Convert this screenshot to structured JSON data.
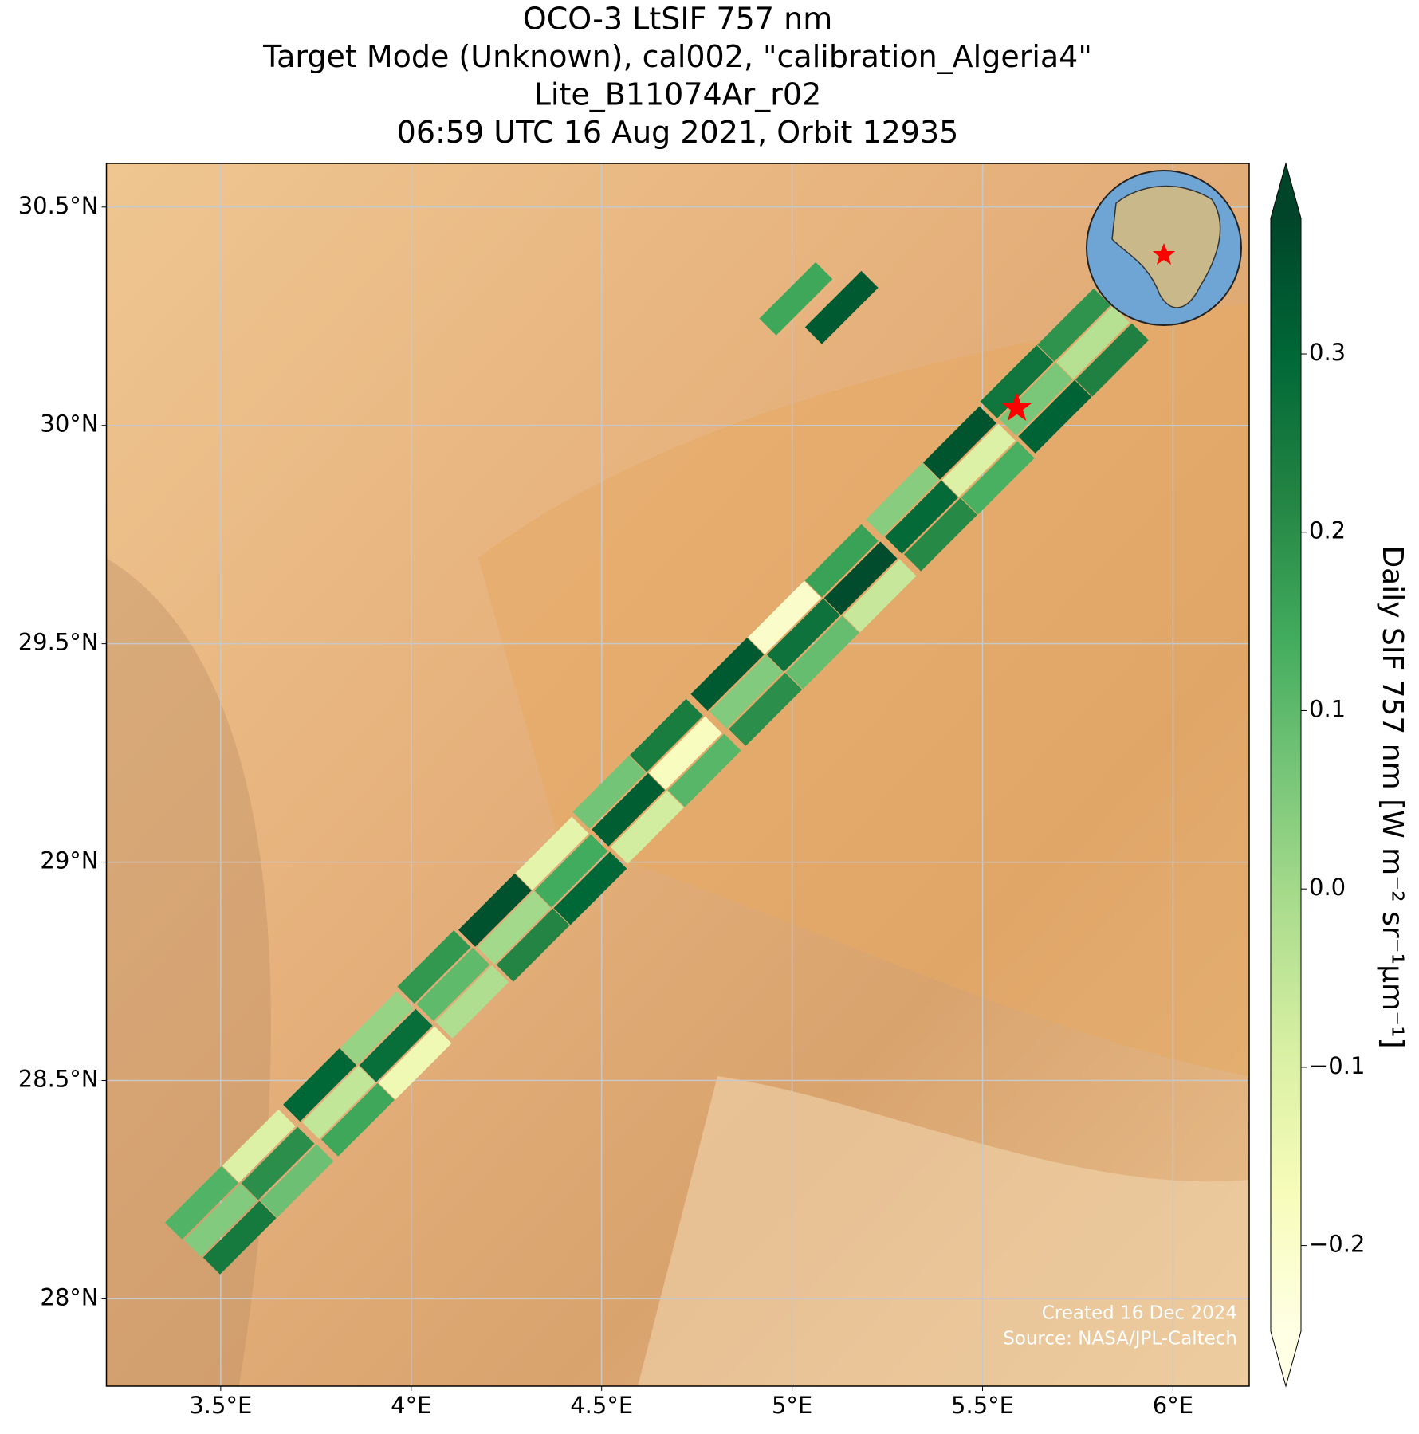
{
  "chart_data": {
    "type": "scatter",
    "title": [
      "OCO-3 LtSIF 757 nm",
      "Target Mode (Unknown), cal002, \"calibration_Algeria4\"",
      "Lite_B11074Ar_r02",
      "06:59 UTC 16 Aug 2021, Orbit 12935"
    ],
    "xlim": [
      3.2,
      6.2
    ],
    "ylim": [
      27.8,
      30.6
    ],
    "xticks": [
      {
        "value": 3.5,
        "label": "3.5°E"
      },
      {
        "value": 4,
        "label": "4°E"
      },
      {
        "value": 4.5,
        "label": "4.5°E"
      },
      {
        "value": 5,
        "label": "5°E"
      },
      {
        "value": 5.5,
        "label": "5.5°E"
      },
      {
        "value": 6,
        "label": "6°E"
      }
    ],
    "yticks": [
      {
        "value": 28,
        "label": "28°N"
      },
      {
        "value": 28.5,
        "label": "28.5°N"
      },
      {
        "value": 29,
        "label": "29°N"
      },
      {
        "value": 29.5,
        "label": "29.5°N"
      },
      {
        "value": 30,
        "label": "30°N"
      },
      {
        "value": 30.5,
        "label": "30.5°N"
      }
    ],
    "grid": true,
    "x": [
      3.45,
      3.5,
      3.55,
      3.6,
      3.65,
      3.7,
      3.76,
      3.81,
      3.86,
      3.91,
      3.96,
      4.01,
      4.06,
      4.11,
      4.16,
      4.22,
      4.27,
      4.32,
      4.37,
      4.42,
      4.47,
      4.52,
      4.57,
      4.62,
      4.67,
      4.72,
      4.77,
      4.83,
      4.88,
      4.93,
      4.98,
      5.03,
      5.08,
      5.13,
      5.18,
      5.23,
      5.29,
      5.34,
      5.39,
      5.44,
      5.49,
      5.54,
      5.59,
      5.64,
      5.69,
      5.74,
      5.79,
      5.84,
      5.01,
      5.13
    ],
    "y": [
      28.22,
      28.18,
      28.14,
      28.35,
      28.31,
      28.27,
      28.49,
      28.45,
      28.41,
      28.62,
      28.58,
      28.54,
      28.76,
      28.72,
      28.68,
      28.89,
      28.85,
      28.81,
      29.02,
      28.98,
      28.94,
      29.16,
      29.12,
      29.08,
      29.29,
      29.25,
      29.21,
      29.43,
      29.39,
      29.35,
      29.56,
      29.52,
      29.48,
      29.69,
      29.65,
      29.61,
      29.83,
      29.79,
      29.75,
      29.96,
      29.92,
      29.88,
      30.1,
      30.06,
      30.02,
      30.23,
      30.19,
      30.15,
      30.29,
      30.27
    ],
    "values": [
      0.12,
      0.05,
      0.25,
      -0.1,
      0.2,
      0.08,
      0.3,
      -0.05,
      0.15,
      0.02,
      0.28,
      -0.15,
      0.18,
      0.1,
      -0.02,
      0.35,
      0.0,
      0.22,
      -0.12,
      0.14,
      0.3,
      0.07,
      0.32,
      -0.08,
      0.24,
      -0.18,
      0.11,
      0.33,
      0.05,
      0.2,
      -0.2,
      0.27,
      0.09,
      0.16,
      0.36,
      -0.06,
      0.04,
      0.29,
      0.21,
      0.34,
      -0.1,
      0.13,
      0.26,
      0.06,
      0.31,
      0.19,
      -0.03,
      0.23,
      0.15,
      0.33
    ],
    "colorbar_label": "Daily SIF 757 nm [W m⁻² sr⁻¹μm⁻¹]",
    "clim": [
      -0.248,
      0.376
    ],
    "cticks": [
      {
        "value": -0.2,
        "label": "−0.2"
      },
      {
        "value": -0.1,
        "label": "−0.1"
      },
      {
        "value": 0,
        "label": "0.0"
      },
      0.1,
      0.2,
      0.3
    ],
    "colormap": [
      "#ffffe5",
      "#f7fcb9",
      "#d9f0a3",
      "#addd8e",
      "#78c679",
      "#41ab5d",
      "#238443",
      "#006837",
      "#004529"
    ],
    "marker": {
      "x": 5.59,
      "y": 30.04,
      "color": "#ff0000"
    },
    "footer": [
      "Created 16 Dec 2024",
      "Source: NASA/JPL-Caltech"
    ]
  }
}
